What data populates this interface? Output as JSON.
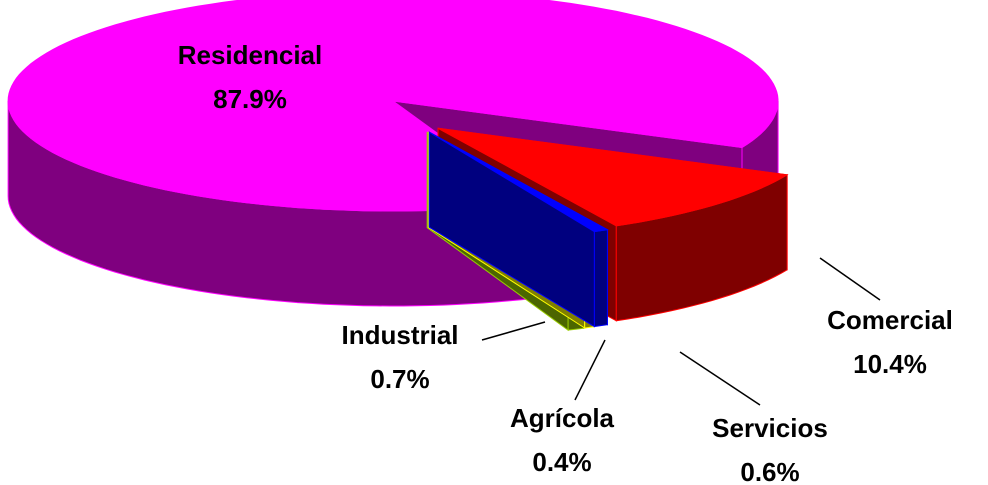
{
  "chart_data": {
    "type": "pie3d",
    "categories": [
      "Comercial",
      "Servicios",
      "Agrícola",
      "Industrial",
      "Residencial"
    ],
    "values": [
      10.4,
      0.6,
      0.4,
      0.7,
      87.9
    ],
    "value_labels": [
      "10.4%",
      "0.6%",
      "0.4%",
      "0.7%",
      "87.9%"
    ],
    "colors": [
      "#ff0000",
      "#0000ff",
      "#ffff00",
      "#99cc00",
      "#ff00ff"
    ]
  }
}
